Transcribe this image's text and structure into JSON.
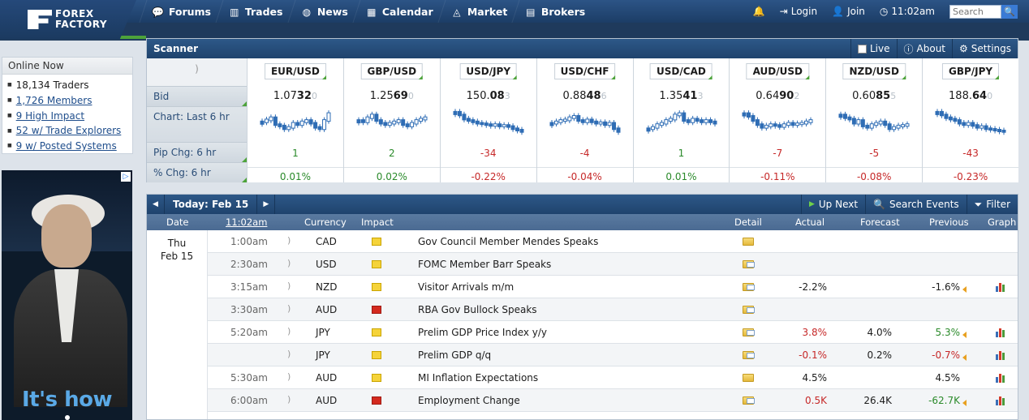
{
  "logo": {
    "line1": "FOREX",
    "line2": "FACTORY"
  },
  "nav": [
    {
      "label": "Forums",
      "icon": "chat-bubbles-icon"
    },
    {
      "label": "Trades",
      "icon": "bar-chart-icon"
    },
    {
      "label": "News",
      "icon": "globe-icon"
    },
    {
      "label": "Calendar",
      "icon": "calendar-icon"
    },
    {
      "label": "Market",
      "icon": "line-chart-icon"
    },
    {
      "label": "Brokers",
      "icon": "broker-building-icon"
    }
  ],
  "right_nav": {
    "login": "Login",
    "join": "Join",
    "time": "11:02am",
    "search_placeholder": "Search"
  },
  "online": {
    "title": "Online Now",
    "items": [
      "18,134 Traders",
      "1,726 Members",
      "9 High Impact",
      "52 w/ Trade Explorers",
      "9 w/ Posted Systems"
    ]
  },
  "ad": {
    "slogan": "It's how"
  },
  "scanner": {
    "title": "Scanner",
    "live": "Live",
    "about": "About",
    "settings": "Settings",
    "row_labels": {
      "bid": "Bid",
      "chart": "Chart: Last 6 hr",
      "pip": "Pip Chg: 6 hr",
      "pct": "% Chg: 6 hr"
    },
    "pairs": [
      {
        "name": "EUR/USD",
        "bid_a": "1.07",
        "bid_b": "32",
        "bid_c": "0",
        "pip": "1",
        "pct": "0.01%",
        "dir": "up",
        "trend": [
          0.55,
          0.62,
          0.7,
          0.45,
          0.4,
          0.3,
          0.35,
          0.5,
          0.45,
          0.55,
          0.6,
          0.5,
          0.35,
          0.3,
          0.6,
          0.85
        ]
      },
      {
        "name": "GBP/USD",
        "bid_a": "1.25",
        "bid_b": "69",
        "bid_c": "0",
        "pip": "2",
        "pct": "0.02%",
        "dir": "up",
        "trend": [
          0.6,
          0.55,
          0.7,
          0.8,
          0.6,
          0.5,
          0.45,
          0.5,
          0.55,
          0.6,
          0.45,
          0.4,
          0.5,
          0.6,
          0.65,
          0.7
        ]
      },
      {
        "name": "USD/JPY",
        "bid_a": "150.",
        "bid_b": "08",
        "bid_c": "3",
        "pip": "-34",
        "pct": "-0.22%",
        "dir": "dn",
        "trend": [
          0.9,
          0.8,
          0.65,
          0.6,
          0.55,
          0.5,
          0.48,
          0.45,
          0.42,
          0.45,
          0.4,
          0.42,
          0.38,
          0.3,
          0.25,
          0.2
        ]
      },
      {
        "name": "USD/CHF",
        "bid_a": "0.88",
        "bid_b": "48",
        "bid_c": "6",
        "pip": "-4",
        "pct": "-0.04%",
        "dir": "dn",
        "trend": [
          0.5,
          0.55,
          0.6,
          0.62,
          0.7,
          0.75,
          0.6,
          0.55,
          0.62,
          0.55,
          0.5,
          0.52,
          0.45,
          0.5,
          0.3,
          0.2
        ]
      },
      {
        "name": "USD/CAD",
        "bid_a": "1.35",
        "bid_b": "41",
        "bid_c": "3",
        "pip": "1",
        "pct": "0.01%",
        "dir": "up",
        "trend": [
          0.3,
          0.35,
          0.45,
          0.5,
          0.6,
          0.65,
          0.8,
          0.85,
          0.6,
          0.55,
          0.65,
          0.6,
          0.55,
          0.6,
          0.55,
          0.5
        ]
      },
      {
        "name": "AUD/USD",
        "bid_a": "0.64",
        "bid_b": "90",
        "bid_c": "2",
        "pip": "-7",
        "pct": "-0.11%",
        "dir": "dn",
        "trend": [
          0.85,
          0.75,
          0.6,
          0.45,
          0.35,
          0.4,
          0.45,
          0.42,
          0.38,
          0.45,
          0.5,
          0.45,
          0.48,
          0.5,
          0.55,
          0.6
        ]
      },
      {
        "name": "NZD/USD",
        "bid_a": "0.60",
        "bid_b": "85",
        "bid_c": "5",
        "pip": "-5",
        "pct": "-0.08%",
        "dir": "dn",
        "trend": [
          0.8,
          0.7,
          0.65,
          0.5,
          0.6,
          0.4,
          0.35,
          0.45,
          0.5,
          0.55,
          0.45,
          0.3,
          0.35,
          0.4,
          0.42,
          0.45
        ]
      },
      {
        "name": "GBP/JPY",
        "bid_a": "188.",
        "bid_b": "64",
        "bid_c": "0",
        "pip": "-43",
        "pct": "-0.23%",
        "dir": "dn",
        "trend": [
          0.9,
          0.8,
          0.7,
          0.65,
          0.6,
          0.5,
          0.45,
          0.5,
          0.42,
          0.35,
          0.38,
          0.3,
          0.28,
          0.25,
          0.22,
          0.2
        ]
      }
    ]
  },
  "calendar": {
    "today_label": "Today: Feb 15",
    "up_next": "Up Next",
    "search_events": "Search Events",
    "filter": "Filter",
    "columns": {
      "date": "Date",
      "time": "11:02am",
      "currency": "Currency",
      "impact": "Impact",
      "detail": "Detail",
      "actual": "Actual",
      "forecast": "Forecast",
      "previous": "Previous",
      "graph": "Graph"
    },
    "day_line1": "Thu",
    "day_line2": "Feb 15",
    "rows": [
      {
        "time": "1:00am",
        "currency": "CAD",
        "impact": "yel",
        "event": "Gov Council Member Mendes Speaks",
        "actual": "",
        "actual_c": "",
        "forecast": "",
        "previous": "",
        "previous_c": "",
        "prev_marker": false,
        "graph": false,
        "open": false
      },
      {
        "time": "2:30am",
        "currency": "USD",
        "impact": "yel",
        "event": "FOMC Member Barr Speaks",
        "actual": "",
        "actual_c": "",
        "forecast": "",
        "previous": "",
        "previous_c": "",
        "prev_marker": false,
        "graph": false,
        "open": true
      },
      {
        "time": "3:15am",
        "currency": "NZD",
        "impact": "yel",
        "event": "Visitor Arrivals m/m",
        "actual": "-2.2%",
        "actual_c": "",
        "forecast": "",
        "previous": "-1.6%",
        "previous_c": "",
        "prev_marker": true,
        "graph": true,
        "open": true
      },
      {
        "time": "3:30am",
        "currency": "AUD",
        "impact": "red",
        "event": "RBA Gov Bullock Speaks",
        "actual": "",
        "actual_c": "",
        "forecast": "",
        "previous": "",
        "previous_c": "",
        "prev_marker": false,
        "graph": false,
        "open": true
      },
      {
        "time": "5:20am",
        "currency": "JPY",
        "impact": "yel",
        "event": "Prelim GDP Price Index y/y",
        "actual": "3.8%",
        "actual_c": "dn",
        "forecast": "4.0%",
        "previous": "5.3%",
        "previous_c": "up",
        "prev_marker": true,
        "graph": true,
        "open": true
      },
      {
        "time": "",
        "currency": "JPY",
        "impact": "yel",
        "event": "Prelim GDP q/q",
        "actual": "-0.1%",
        "actual_c": "dn",
        "forecast": "0.2%",
        "previous": "-0.7%",
        "previous_c": "dn",
        "prev_marker": true,
        "graph": true,
        "open": true
      },
      {
        "time": "5:30am",
        "currency": "AUD",
        "impact": "yel",
        "event": "MI Inflation Expectations",
        "actual": "4.5%",
        "actual_c": "",
        "forecast": "",
        "previous": "4.5%",
        "previous_c": "",
        "prev_marker": false,
        "graph": true,
        "open": false
      },
      {
        "time": "6:00am",
        "currency": "AUD",
        "impact": "red",
        "event": "Employment Change",
        "actual": "0.5K",
        "actual_c": "dn",
        "forecast": "26.4K",
        "previous": "-62.7K",
        "previous_c": "up",
        "prev_marker": true,
        "graph": true,
        "open": true
      }
    ]
  }
}
